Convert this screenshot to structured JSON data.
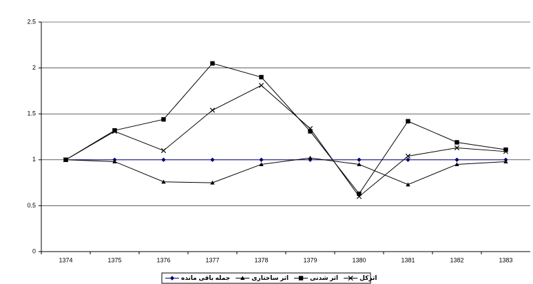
{
  "chart_data": {
    "type": "line",
    "categories": [
      "1374",
      "1375",
      "1376",
      "1377",
      "1378",
      "1379",
      "1380",
      "1381",
      "1382",
      "1383"
    ],
    "series": [
      {
        "name": "جمله باقی مانده",
        "color": "#000080",
        "marker": "diamond",
        "values": [
          1,
          1,
          1,
          1,
          1,
          1,
          1,
          1,
          1,
          1
        ]
      },
      {
        "name": "اثر ساختاری",
        "color": "#000000",
        "marker": "triangle",
        "values": [
          1,
          0.98,
          0.76,
          0.75,
          0.95,
          1.02,
          0.95,
          0.73,
          0.95,
          0.98
        ]
      },
      {
        "name": "اثر شدنی",
        "color": "#000000",
        "marker": "square",
        "values": [
          1,
          1.32,
          1.44,
          2.05,
          1.9,
          1.31,
          0.63,
          1.42,
          1.19,
          1.11
        ]
      },
      {
        "name": "اثرکل",
        "color": "#000000",
        "marker": "x",
        "values": [
          1,
          1.31,
          1.1,
          1.54,
          1.81,
          1.34,
          0.6,
          1.04,
          1.13,
          1.09
        ]
      }
    ],
    "ylim": [
      0,
      2.5
    ],
    "yticks": [
      0,
      0.5,
      1,
      1.5,
      2,
      2.5
    ],
    "grid": true,
    "legend": "bottom"
  }
}
